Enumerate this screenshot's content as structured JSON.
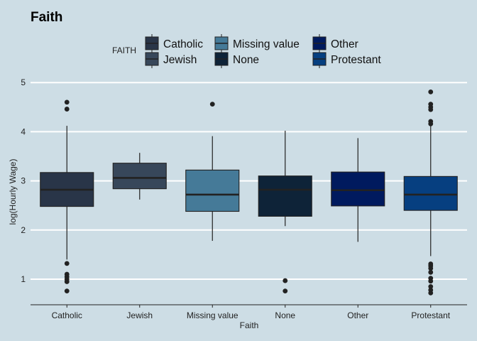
{
  "chart_data": {
    "type": "box",
    "title": "Faith",
    "xlabel": "Faith",
    "ylabel": "log(Hourly Wage)",
    "ylim": [
      0.5,
      5.1
    ],
    "yticks": [
      1,
      2,
      3,
      4,
      5
    ],
    "grid": true,
    "legend": {
      "title": "FAITH",
      "placement": "top",
      "entries": [
        "Catholic",
        "Jewish",
        "Missing value",
        "None",
        "Other",
        "Protestant"
      ]
    },
    "categories": [
      "Catholic",
      "Jewish",
      "Missing value",
      "None",
      "Other",
      "Protestant"
    ],
    "colors": [
      "#293548",
      "#37475a",
      "#457a98",
      "#0e2338",
      "#001a5e",
      "#063f80"
    ],
    "boxes": [
      {
        "category": "Catholic",
        "whisker_low": 1.4,
        "q1": 2.48,
        "median": 2.82,
        "q3": 3.17,
        "whisker_high": 4.12,
        "outliers": [
          4.6,
          4.46,
          1.32,
          1.1,
          1.05,
          1.0,
          0.95,
          0.76
        ]
      },
      {
        "category": "Jewish",
        "whisker_low": 2.62,
        "q1": 2.84,
        "median": 3.06,
        "q3": 3.36,
        "whisker_high": 3.57,
        "outliers": []
      },
      {
        "category": "Missing value",
        "whisker_low": 1.78,
        "q1": 2.38,
        "median": 2.72,
        "q3": 3.22,
        "whisker_high": 3.91,
        "outliers": [
          4.56
        ]
      },
      {
        "category": "None",
        "whisker_low": 2.08,
        "q1": 2.28,
        "median": 2.82,
        "q3": 3.1,
        "whisker_high": 4.02,
        "outliers": [
          0.97,
          0.76
        ]
      },
      {
        "category": "Other",
        "whisker_low": 1.76,
        "q1": 2.49,
        "median": 2.81,
        "q3": 3.18,
        "whisker_high": 3.87,
        "outliers": []
      },
      {
        "category": "Protestant",
        "whisker_low": 1.47,
        "q1": 2.4,
        "median": 2.72,
        "q3": 3.09,
        "whisker_high": 4.17,
        "outliers": [
          4.81,
          4.56,
          4.5,
          4.45,
          4.21,
          4.16,
          1.31,
          1.27,
          1.22,
          1.14,
          1.02,
          0.96,
          0.85,
          0.78,
          0.72
        ]
      }
    ]
  }
}
